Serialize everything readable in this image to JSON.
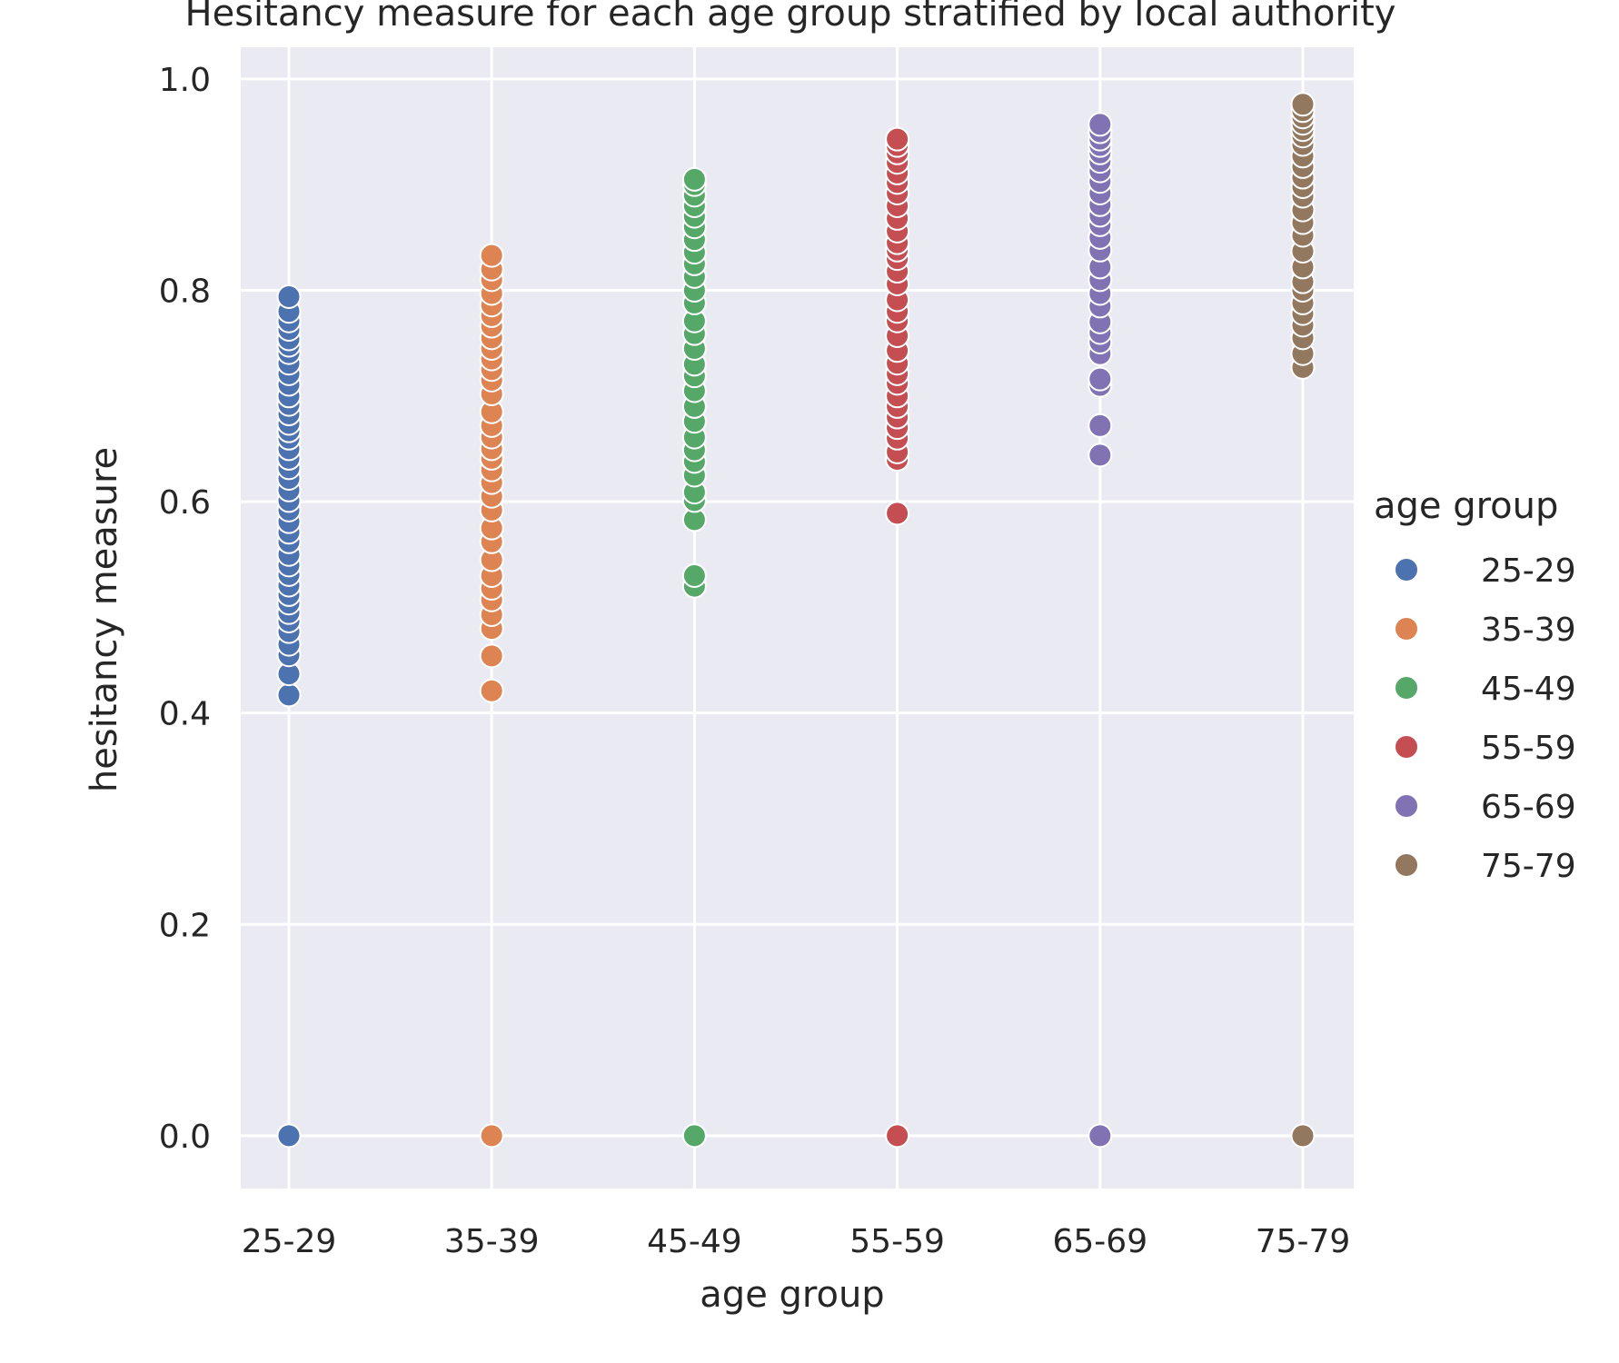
{
  "chart_data": {
    "type": "scatter",
    "title": "Hesitancy measure for each age group stratified by local authority",
    "xlabel": "age group",
    "ylabel": "hesitancy measure",
    "categories": [
      "25-29",
      "35-39",
      "45-49",
      "55-59",
      "65-69",
      "75-79"
    ],
    "ylim": [
      -0.05,
      1.03
    ],
    "yticks": [
      "0.0",
      "0.2",
      "0.4",
      "0.6",
      "0.8",
      "1.0"
    ],
    "grid": true,
    "background": "#eaeaf2",
    "legend": {
      "title": "age group",
      "placement": "right"
    },
    "series": [
      {
        "name": "25-29",
        "color": "#4c72b0",
        "values": [
          0.0,
          0.417,
          0.437,
          0.455,
          0.465,
          0.477,
          0.487,
          0.495,
          0.504,
          0.512,
          0.521,
          0.531,
          0.54,
          0.55,
          0.562,
          0.571,
          0.581,
          0.592,
          0.601,
          0.611,
          0.622,
          0.632,
          0.641,
          0.65,
          0.66,
          0.667,
          0.674,
          0.683,
          0.692,
          0.7,
          0.711,
          0.721,
          0.731,
          0.741,
          0.748,
          0.754,
          0.763,
          0.771,
          0.78,
          0.794
        ]
      },
      {
        "name": "35-39",
        "color": "#dd8452",
        "values": [
          0.0,
          0.421,
          0.454,
          0.48,
          0.493,
          0.507,
          0.518,
          0.53,
          0.545,
          0.562,
          0.575,
          0.592,
          0.605,
          0.618,
          0.63,
          0.641,
          0.65,
          0.661,
          0.672,
          0.685,
          0.702,
          0.715,
          0.725,
          0.735,
          0.745,
          0.755,
          0.766,
          0.776,
          0.786,
          0.797,
          0.81,
          0.82,
          0.833
        ]
      },
      {
        "name": "45-49",
        "color": "#55a868",
        "values": [
          0.0,
          0.52,
          0.53,
          0.583,
          0.601,
          0.609,
          0.625,
          0.638,
          0.649,
          0.661,
          0.676,
          0.69,
          0.705,
          0.719,
          0.73,
          0.745,
          0.759,
          0.771,
          0.788,
          0.8,
          0.813,
          0.825,
          0.836,
          0.848,
          0.86,
          0.87,
          0.88,
          0.89,
          0.9,
          0.905
        ]
      },
      {
        "name": "55-59",
        "color": "#c44e52",
        "values": [
          0.0,
          0.589,
          0.64,
          0.647,
          0.66,
          0.67,
          0.68,
          0.69,
          0.7,
          0.712,
          0.721,
          0.731,
          0.743,
          0.757,
          0.771,
          0.78,
          0.791,
          0.806,
          0.818,
          0.83,
          0.838,
          0.845,
          0.856,
          0.868,
          0.88,
          0.892,
          0.902,
          0.911,
          0.921,
          0.93,
          0.937,
          0.943
        ]
      },
      {
        "name": "65-69",
        "color": "#8172b3",
        "values": [
          0.0,
          0.644,
          0.672,
          0.71,
          0.716,
          0.74,
          0.751,
          0.76,
          0.77,
          0.785,
          0.797,
          0.81,
          0.822,
          0.838,
          0.85,
          0.862,
          0.871,
          0.881,
          0.892,
          0.903,
          0.913,
          0.922,
          0.93,
          0.937,
          0.943,
          0.95,
          0.957
        ]
      },
      {
        "name": "75-79",
        "color": "#937860",
        "values": [
          0.0,
          0.727,
          0.74,
          0.755,
          0.767,
          0.778,
          0.788,
          0.8,
          0.808,
          0.822,
          0.837,
          0.852,
          0.864,
          0.876,
          0.889,
          0.898,
          0.907,
          0.917,
          0.927,
          0.938,
          0.946,
          0.952,
          0.958,
          0.964,
          0.97,
          0.976
        ]
      }
    ]
  }
}
